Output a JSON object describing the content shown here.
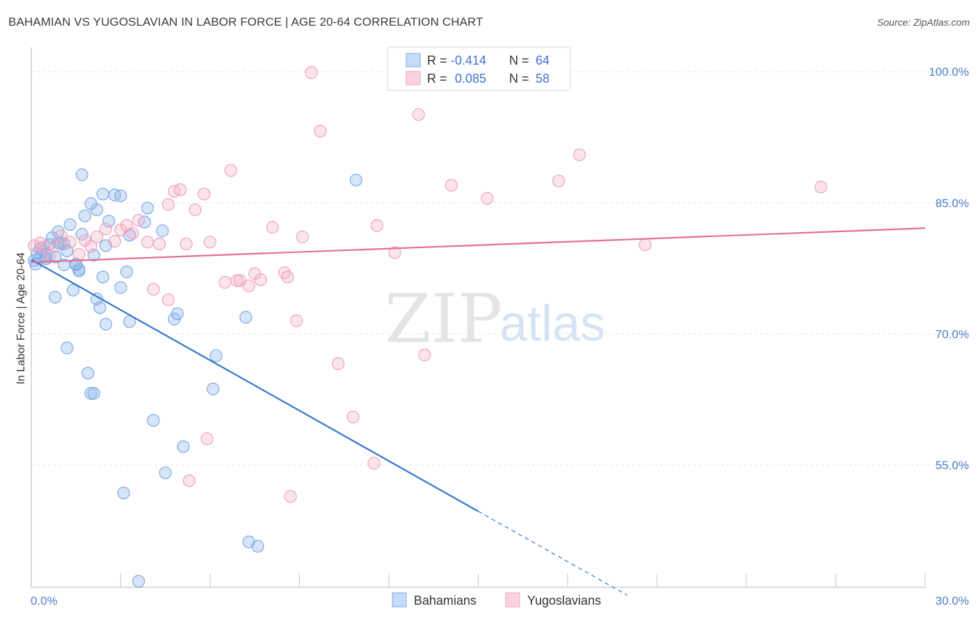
{
  "title": "BAHAMIAN VS YUGOSLAVIAN IN LABOR FORCE | AGE 20-64 CORRELATION CHART",
  "source": "Source: ZipAtlas.com",
  "watermark": {
    "zip": "ZIP",
    "atlas": "atlas"
  },
  "legend": {
    "r_label": "R =",
    "n_label": "N =",
    "rows": [
      {
        "r": "-0.414",
        "n": "64"
      },
      {
        "r": "0.085",
        "n": "58"
      }
    ]
  },
  "bottom_legend": [
    "Bahamians",
    "Yugoslavians"
  ],
  "chart_data": {
    "type": "scatter",
    "xlabel": "",
    "ylabel": "In Labor Force | Age 20-64",
    "xlim": [
      0,
      30
    ],
    "ylim": [
      41,
      102
    ],
    "x_tick_labels": [
      "0.0%",
      "30.0%"
    ],
    "y_ticks": [
      55,
      70,
      85,
      100
    ],
    "y_tick_labels": [
      "55.0%",
      "70.0%",
      "85.0%",
      "100.0%"
    ],
    "grid": true,
    "colors": {
      "Bahamians": "#8ab4ea",
      "Yugoslavians": "#f3a9c2",
      "blue_line": "#2f74d0",
      "pink_line": "#e56c96"
    },
    "series": [
      {
        "name": "Bahamians",
        "points": [
          [
            0.1,
            78.4
          ],
          [
            0.2,
            79.2
          ],
          [
            0.3,
            78.8
          ],
          [
            0.4,
            79.5
          ],
          [
            0.5,
            79.1
          ],
          [
            0.6,
            80.2
          ],
          [
            0.5,
            78.6
          ],
          [
            0.7,
            81.0
          ],
          [
            0.8,
            78.8
          ],
          [
            0.9,
            81.7
          ],
          [
            1.0,
            80.4
          ],
          [
            1.1,
            80.3
          ],
          [
            1.2,
            79.5
          ],
          [
            1.3,
            82.5
          ],
          [
            1.5,
            77.9
          ],
          [
            1.6,
            77.4
          ],
          [
            1.7,
            81.4
          ],
          [
            1.8,
            83.5
          ],
          [
            2.1,
            79.0
          ],
          [
            2.2,
            84.2
          ],
          [
            2.4,
            76.5
          ],
          [
            2.4,
            86.0
          ],
          [
            2.5,
            80.1
          ],
          [
            2.6,
            82.9
          ],
          [
            2.8,
            85.9
          ],
          [
            3.0,
            75.3
          ],
          [
            3.2,
            77.1
          ],
          [
            3.3,
            71.4
          ],
          [
            3.8,
            82.8
          ],
          [
            3.9,
            84.4
          ],
          [
            4.4,
            81.8
          ],
          [
            4.8,
            71.7
          ],
          [
            4.9,
            72.3
          ],
          [
            6.2,
            67.5
          ],
          [
            6.1,
            63.7
          ],
          [
            7.2,
            71.9
          ],
          [
            10.9,
            87.6
          ],
          [
            0.8,
            74.2
          ],
          [
            1.4,
            75.0
          ],
          [
            1.6,
            77.2
          ],
          [
            1.2,
            68.4
          ],
          [
            1.9,
            65.5
          ],
          [
            2.0,
            63.2
          ],
          [
            2.1,
            63.2
          ],
          [
            2.2,
            74.0
          ],
          [
            2.3,
            73.0
          ],
          [
            2.5,
            71.1
          ],
          [
            2.0,
            84.9
          ],
          [
            3.0,
            85.8
          ],
          [
            3.3,
            81.3
          ],
          [
            4.1,
            60.1
          ],
          [
            4.5,
            54.1
          ],
          [
            5.1,
            57.1
          ],
          [
            3.1,
            51.8
          ],
          [
            7.3,
            46.2
          ],
          [
            7.6,
            45.7
          ],
          [
            3.6,
            41.7
          ],
          [
            1.7,
            88.2
          ],
          [
            0.15,
            78.0
          ],
          [
            0.3,
            79.8
          ],
          [
            0.5,
            78.6
          ],
          [
            0.9,
            80.4
          ],
          [
            1.5,
            78.0
          ],
          [
            1.1,
            77.9
          ]
        ]
      },
      {
        "name": "Yugoslavians",
        "points": [
          [
            0.1,
            80.1
          ],
          [
            0.3,
            80.4
          ],
          [
            0.4,
            79.9
          ],
          [
            0.6,
            78.9
          ],
          [
            0.8,
            80.0
          ],
          [
            1.0,
            81.2
          ],
          [
            1.3,
            80.5
          ],
          [
            1.6,
            79.1
          ],
          [
            1.8,
            80.7
          ],
          [
            2.0,
            80.0
          ],
          [
            2.2,
            81.1
          ],
          [
            2.5,
            82.0
          ],
          [
            2.8,
            80.6
          ],
          [
            3.0,
            81.9
          ],
          [
            3.2,
            82.4
          ],
          [
            3.4,
            81.5
          ],
          [
            3.6,
            83.0
          ],
          [
            3.9,
            80.5
          ],
          [
            4.1,
            75.1
          ],
          [
            4.3,
            80.3
          ],
          [
            4.6,
            84.8
          ],
          [
            4.8,
            86.3
          ],
          [
            5.0,
            86.5
          ],
          [
            5.2,
            80.3
          ],
          [
            5.5,
            84.2
          ],
          [
            5.8,
            86.0
          ],
          [
            6.0,
            80.5
          ],
          [
            6.5,
            75.9
          ],
          [
            6.7,
            88.7
          ],
          [
            6.9,
            76.1
          ],
          [
            7.0,
            76.1
          ],
          [
            7.3,
            75.5
          ],
          [
            7.5,
            76.9
          ],
          [
            7.7,
            76.2
          ],
          [
            8.1,
            82.2
          ],
          [
            8.5,
            77.0
          ],
          [
            8.6,
            76.5
          ],
          [
            8.9,
            71.5
          ],
          [
            9.1,
            81.1
          ],
          [
            9.4,
            99.9
          ],
          [
            9.7,
            93.2
          ],
          [
            10.3,
            66.6
          ],
          [
            10.8,
            60.5
          ],
          [
            11.5,
            55.2
          ],
          [
            11.6,
            82.4
          ],
          [
            12.2,
            79.3
          ],
          [
            13.0,
            95.1
          ],
          [
            13.2,
            67.6
          ],
          [
            14.1,
            87.0
          ],
          [
            15.3,
            85.5
          ],
          [
            17.7,
            87.5
          ],
          [
            18.4,
            90.5
          ],
          [
            20.6,
            80.2
          ],
          [
            26.5,
            86.8
          ],
          [
            5.3,
            53.2
          ],
          [
            5.9,
            58.0
          ],
          [
            8.7,
            51.4
          ],
          [
            4.6,
            73.9
          ]
        ]
      }
    ],
    "trend_lines": [
      {
        "series": "Bahamians",
        "x": [
          0,
          15
        ],
        "y": [
          78.5,
          49.7
        ],
        "dashed_to": [
          20,
          40.1
        ]
      },
      {
        "series": "Yugoslavians",
        "x": [
          0,
          30
        ],
        "y": [
          78.2,
          82.1
        ]
      }
    ]
  }
}
